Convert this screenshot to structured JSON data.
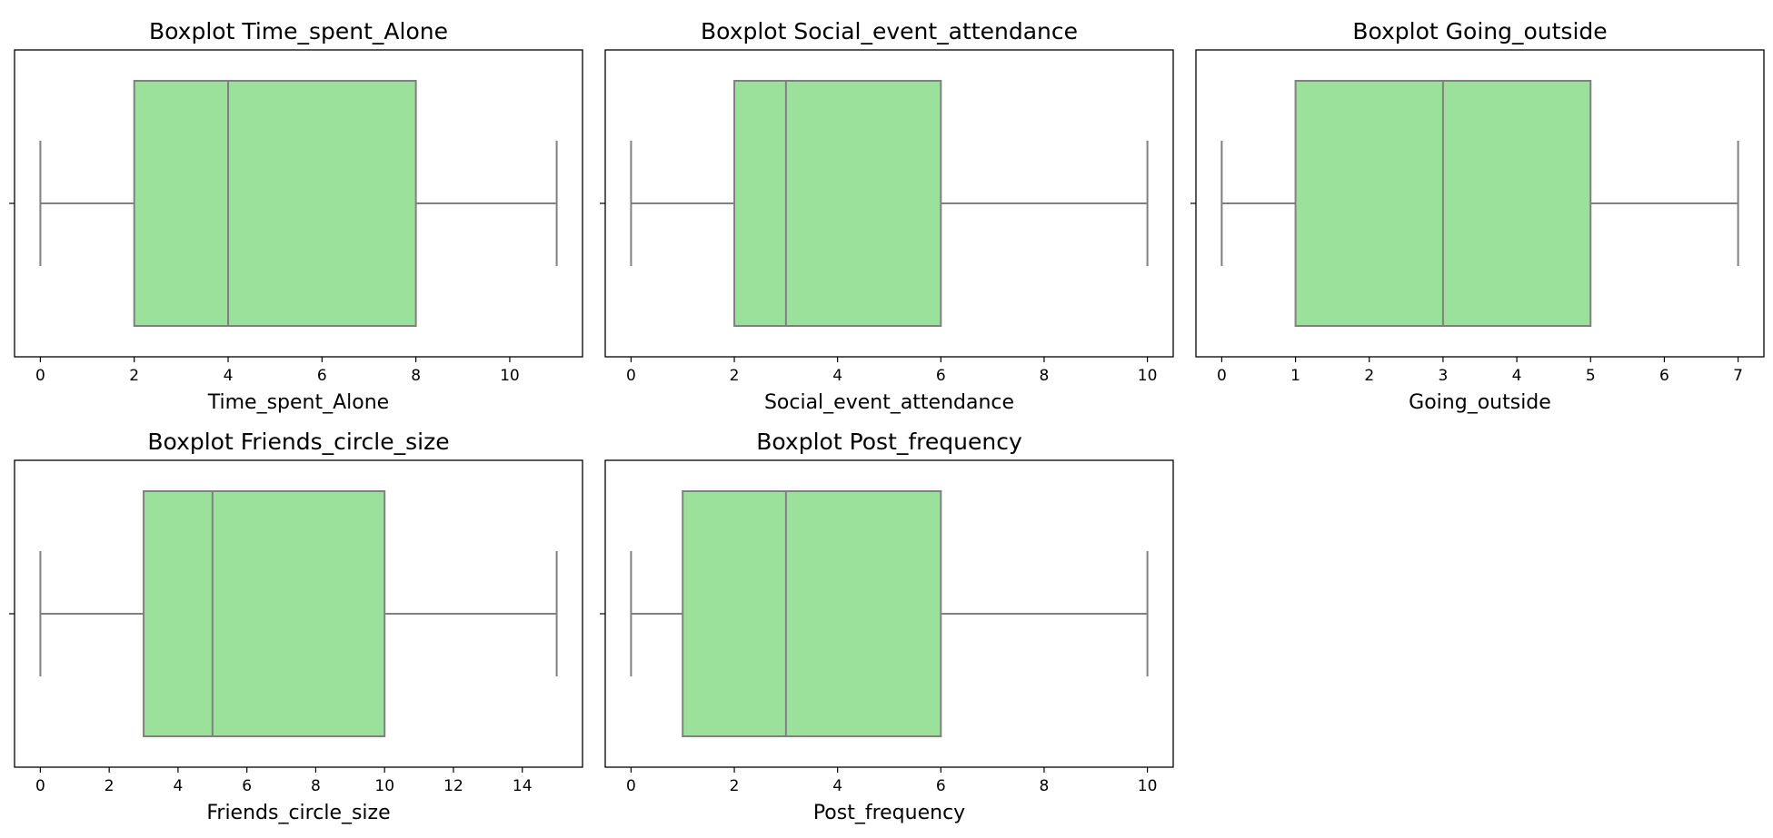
{
  "figure": {
    "background": "#ffffff"
  },
  "chart_data": [
    {
      "type": "boxplot",
      "title": "Boxplot Time_spent_Alone",
      "xlabel": "Time_spent_Alone",
      "xlim": [
        -0.55,
        11.55
      ],
      "xticks": [
        0,
        2,
        4,
        6,
        8,
        10
      ],
      "stats": {
        "whisker_low": 0,
        "q1": 2,
        "median": 4,
        "q3": 8,
        "whisker_high": 11
      },
      "box_color": "#9be19b",
      "line_color": "#808080"
    },
    {
      "type": "boxplot",
      "title": "Boxplot Social_event_attendance",
      "xlabel": "Social_event_attendance",
      "xlim": [
        -0.5,
        10.5
      ],
      "xticks": [
        0,
        2,
        4,
        6,
        8,
        10
      ],
      "stats": {
        "whisker_low": 0,
        "q1": 2,
        "median": 3,
        "q3": 6,
        "whisker_high": 10
      },
      "box_color": "#9be19b",
      "line_color": "#808080"
    },
    {
      "type": "boxplot",
      "title": "Boxplot Going_outside",
      "xlabel": "Going_outside",
      "xlim": [
        -0.35,
        7.35
      ],
      "xticks": [
        0,
        1,
        2,
        3,
        4,
        5,
        6,
        7
      ],
      "stats": {
        "whisker_low": 0,
        "q1": 1,
        "median": 3,
        "q3": 5,
        "whisker_high": 7
      },
      "box_color": "#9be19b",
      "line_color": "#808080"
    },
    {
      "type": "boxplot",
      "title": "Boxplot Friends_circle_size",
      "xlabel": "Friends_circle_size",
      "xlim": [
        -0.75,
        15.75
      ],
      "xticks": [
        0,
        2,
        4,
        6,
        8,
        10,
        12,
        14
      ],
      "stats": {
        "whisker_low": 0,
        "q1": 3,
        "median": 5,
        "q3": 10,
        "whisker_high": 15
      },
      "box_color": "#9be19b",
      "line_color": "#808080"
    },
    {
      "type": "boxplot",
      "title": "Boxplot Post_frequency",
      "xlabel": "Post_frequency",
      "xlim": [
        -0.5,
        10.5
      ],
      "xticks": [
        0,
        2,
        4,
        6,
        8,
        10
      ],
      "stats": {
        "whisker_low": 0,
        "q1": 1,
        "median": 3,
        "q3": 6,
        "whisker_high": 10
      },
      "box_color": "#9be19b",
      "line_color": "#808080"
    }
  ]
}
